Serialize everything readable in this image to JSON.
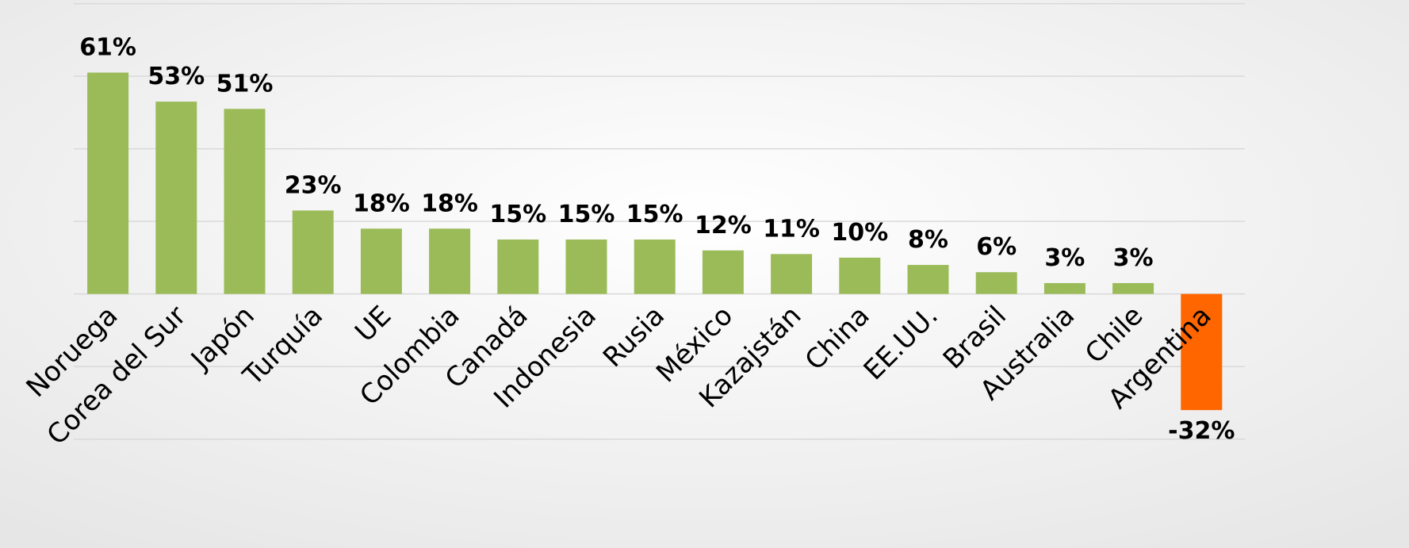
{
  "chart_data": {
    "type": "bar",
    "categories": [
      "Noruega",
      "Corea del Sur",
      "Japón",
      "Turquía",
      "UE",
      "Colombia",
      "Canadá",
      "Indonesia",
      "Rusia",
      "México",
      "Kazajstán",
      "China",
      "EE.UU.",
      "Brasil",
      "Australia",
      "Chile",
      "Argentina"
    ],
    "values": [
      61,
      53,
      51,
      23,
      18,
      18,
      15,
      15,
      15,
      12,
      11,
      10,
      8,
      6,
      3,
      3,
      -32
    ],
    "value_labels": [
      "61%",
      "53%",
      "51%",
      "23%",
      "18%",
      "18%",
      "15%",
      "15%",
      "15%",
      "12%",
      "11%",
      "10%",
      "8%",
      "6%",
      "3%",
      "3%",
      "-32%"
    ],
    "colors": [
      "#9bbb59",
      "#9bbb59",
      "#9bbb59",
      "#9bbb59",
      "#9bbb59",
      "#9bbb59",
      "#9bbb59",
      "#9bbb59",
      "#9bbb59",
      "#9bbb59",
      "#9bbb59",
      "#9bbb59",
      "#9bbb59",
      "#9bbb59",
      "#9bbb59",
      "#9bbb59",
      "#ff6600"
    ],
    "ylim": [
      -70,
      81
    ],
    "yticks": [
      -40,
      -20,
      0,
      20,
      40,
      60,
      80
    ],
    "grid": true
  }
}
